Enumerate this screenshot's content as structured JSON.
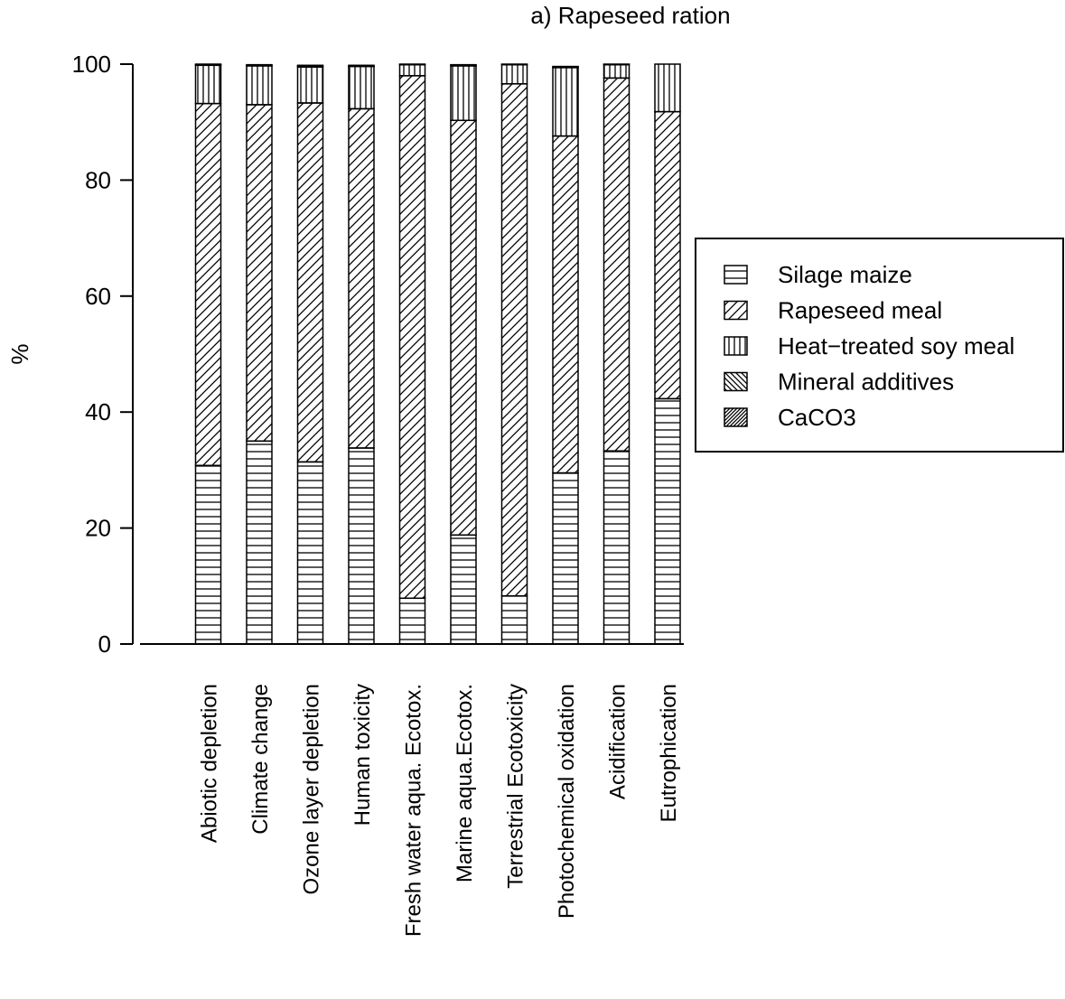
{
  "chart_data": {
    "type": "bar",
    "stacked": true,
    "title": "a) Rapeseed ration",
    "xlabel": "",
    "ylabel": "%",
    "ylim": [
      0,
      100
    ],
    "yticks": [
      0,
      20,
      40,
      60,
      80,
      100
    ],
    "grid": false,
    "legend_position": "right",
    "categories": [
      "Abiotic depletion",
      "Climate change",
      "Ozone layer depletion",
      "Human toxicity",
      "Fresh water aqua. Ecotox.",
      "Marine aqua.Ecotox.",
      "Terrestrial Ecotoxicity",
      "Photochemical oxidation",
      "Acidification",
      "Eutrophication"
    ],
    "series": [
      {
        "name": "Silage maize",
        "pattern": "horizontal",
        "values": [
          30.8,
          35.0,
          31.4,
          33.8,
          7.9,
          18.8,
          8.3,
          29.5,
          33.3,
          42.3
        ]
      },
      {
        "name": "Rapeseed meal",
        "pattern": "diagonal-up",
        "values": [
          62.4,
          58.0,
          61.9,
          58.5,
          90.1,
          71.5,
          88.3,
          58.1,
          64.3,
          49.5
        ]
      },
      {
        "name": "Heat-treated soy meal",
        "pattern": "vertical",
        "values": [
          6.6,
          6.7,
          6.2,
          7.3,
          1.9,
          9.4,
          3.3,
          11.8,
          2.3,
          8.2
        ]
      },
      {
        "name": "Mineral additives",
        "pattern": "diagonal-down",
        "values": [
          0.1,
          0.1,
          0.2,
          0.1,
          0.05,
          0.1,
          0.05,
          0.1,
          0.05,
          0.0
        ]
      },
      {
        "name": "CaCO3",
        "pattern": "dense-diagonal",
        "values": [
          0.1,
          0.1,
          0.1,
          0.1,
          0.05,
          0.1,
          0.05,
          0.1,
          0.05,
          0.0
        ]
      }
    ],
    "legend_labels": [
      "Silage maize",
      "Rapeseed meal",
      "Heat−treated soy meal",
      "Mineral additives",
      "CaCO3"
    ]
  }
}
